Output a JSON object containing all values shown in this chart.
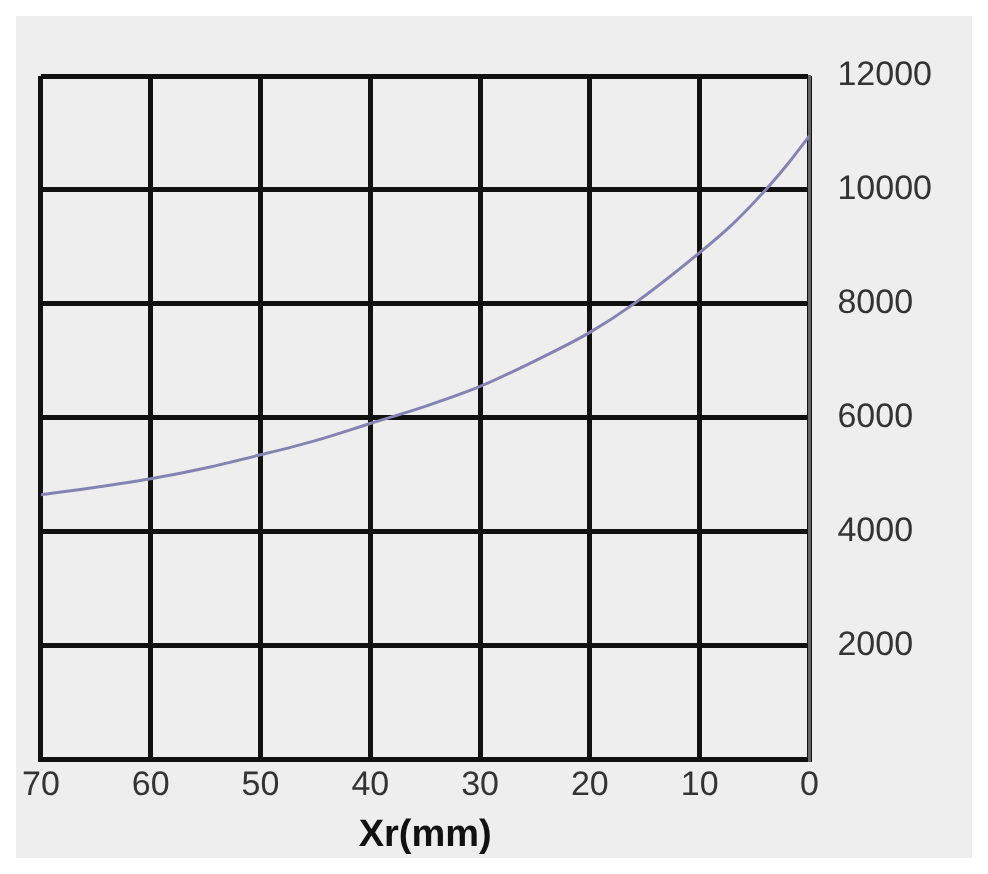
{
  "chart_data": {
    "type": "line",
    "xlabel": "Xr(mm)",
    "x": [
      70,
      65,
      60,
      55,
      50,
      45,
      40,
      35,
      30,
      25,
      20,
      16,
      10,
      7,
      4,
      2,
      0
    ],
    "series": [
      {
        "color": "#8484b4",
        "values": [
          4650,
          4780,
          4930,
          5120,
          5350,
          5600,
          5900,
          6200,
          6550,
          7000,
          7500,
          8000,
          8900,
          9400,
          10000,
          10450,
          10950
        ]
      }
    ],
    "xlim": [
      70,
      0
    ],
    "xticks": [
      70,
      60,
      50,
      40,
      30,
      20,
      10,
      0
    ],
    "ylim": [
      0,
      12000
    ],
    "yticks": [
      {
        "value": 0,
        "label": null
      },
      2000,
      4000,
      6000,
      8000,
      10000,
      12000
    ],
    "grid": true,
    "legend": false,
    "marker": "none",
    "line_style": "solid"
  }
}
